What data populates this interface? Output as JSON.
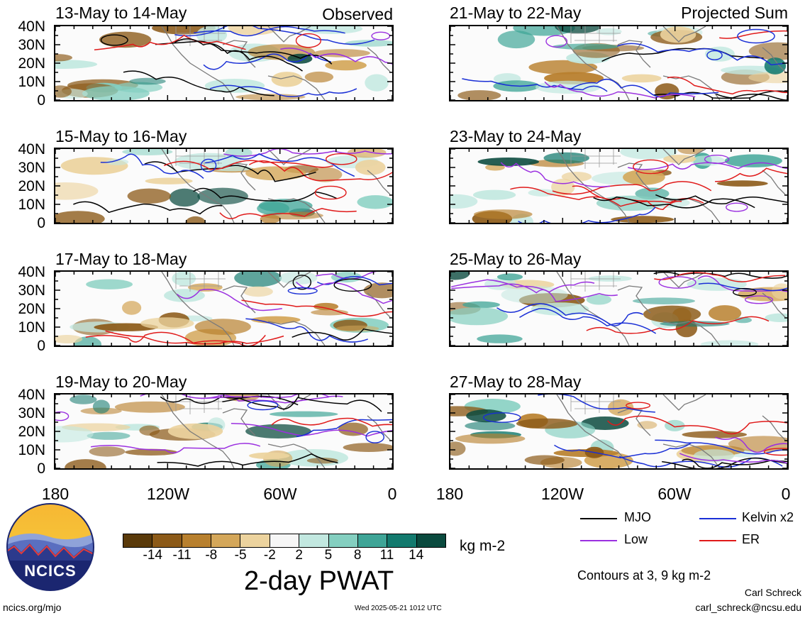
{
  "panels": [
    {
      "title": "13-May to 14-May",
      "tag": "Observed"
    },
    {
      "title": "21-May to 22-May",
      "tag": "Projected Sum"
    },
    {
      "title": "15-May to 16-May",
      "tag": ""
    },
    {
      "title": "23-May to 24-May",
      "tag": ""
    },
    {
      "title": "17-May to 18-May",
      "tag": ""
    },
    {
      "title": "25-May to 26-May",
      "tag": ""
    },
    {
      "title": "19-May to 20-May",
      "tag": ""
    },
    {
      "title": "27-May to 28-May",
      "tag": ""
    }
  ],
  "y_axis": [
    "40N",
    "30N",
    "20N",
    "10N",
    "0"
  ],
  "x_axis": [
    "180",
    "120W",
    "60W",
    "0"
  ],
  "colorbar": {
    "labels": [
      "-14",
      "-11",
      "-8",
      "-5",
      "-2",
      "2",
      "5",
      "8",
      "11",
      "14"
    ],
    "colors": [
      "#5a3a0a",
      "#8c5a18",
      "#b8802e",
      "#d4a75a",
      "#ecd39e",
      "#f6f6f6",
      "#c2e8e0",
      "#84cfc0",
      "#3fa597",
      "#137a6e",
      "#0a4a3e"
    ],
    "units": "kg m-2",
    "title": "2-day PWAT"
  },
  "legend": {
    "items": [
      {
        "label": "MJO",
        "color": "#000000"
      },
      {
        "label": "Kelvin x2",
        "color": "#1a2fd6"
      },
      {
        "label": "Low",
        "color": "#9b30e0"
      },
      {
        "label": "ER",
        "color": "#e01a1a"
      }
    ],
    "note": "Contours at 3, 9 kg m-2"
  },
  "logo": {
    "text": "NCICS"
  },
  "footer": {
    "url": "ncics.org/mjo",
    "timestamp": "Wed 2025-05-21 1012 UTC",
    "author": "Carl Schreck",
    "email": "carl_schreck@ncsu.edu"
  }
}
